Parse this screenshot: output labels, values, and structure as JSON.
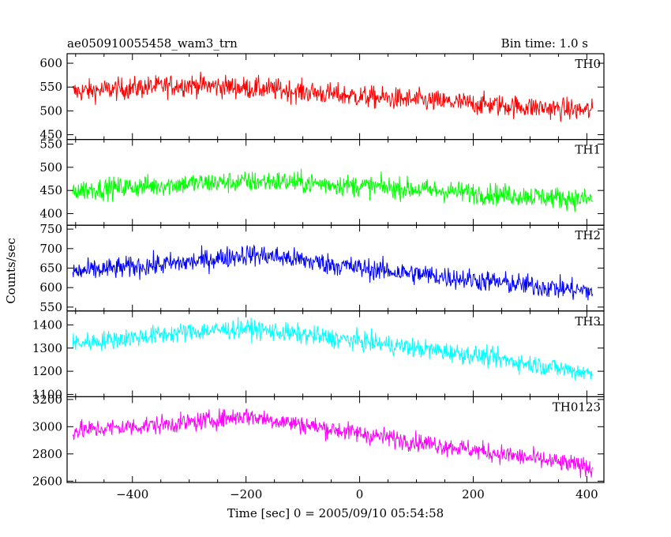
{
  "chart_data": {
    "type": "line",
    "title": "ae050910055458_wam3_trn",
    "bin_time_label": "Bin time: 1.0 s",
    "xlabel": "Time [sec] 0 = 2005/09/10 05:54:58",
    "ylabel": "Counts/sec",
    "x_range": [
      -505,
      410
    ],
    "xlim": [
      -515,
      430
    ],
    "x_ticks": [
      -400,
      -200,
      0,
      200,
      400
    ],
    "x_tick_labels": [
      "−400",
      "−200",
      "0",
      "200",
      "400"
    ],
    "grid": false,
    "legend": "none (panel labels at top-right)",
    "panels": [
      {
        "name": "TH0",
        "color": "#ff0000",
        "ylim": [
          440,
          620
        ],
        "y_ticks": [
          450,
          500,
          550,
          600
        ],
        "trend": [
          [
            -505,
            540
          ],
          [
            -300,
            555
          ],
          [
            -150,
            545
          ],
          [
            0,
            530
          ],
          [
            200,
            515
          ],
          [
            410,
            500
          ]
        ],
        "noise": 42
      },
      {
        "name": "TH1",
        "color": "#00ff00",
        "ylim": [
          375,
          560
        ],
        "y_ticks": [
          400,
          450,
          500,
          550
        ],
        "trend": [
          [
            -505,
            450
          ],
          [
            -300,
            465
          ],
          [
            -150,
            470
          ],
          [
            0,
            460
          ],
          [
            200,
            445
          ],
          [
            410,
            430
          ]
        ],
        "noise": 42
      },
      {
        "name": "TH2",
        "color": "#0000ff",
        "ylim": [
          540,
          760
        ],
        "y_ticks": [
          550,
          600,
          650,
          700,
          750
        ],
        "trend": [
          [
            -505,
            640
          ],
          [
            -300,
            665
          ],
          [
            -200,
            685
          ],
          [
            -150,
            680
          ],
          [
            0,
            650
          ],
          [
            200,
            620
          ],
          [
            410,
            590
          ]
        ],
        "noise": 50
      },
      {
        "name": "TH3",
        "color": "#00ffff",
        "ylim": [
          1090,
          1460
        ],
        "y_ticks": [
          1100,
          1200,
          1300,
          1400
        ],
        "trend": [
          [
            -505,
            1320
          ],
          [
            -300,
            1370
          ],
          [
            -200,
            1385
          ],
          [
            0,
            1330
          ],
          [
            200,
            1270
          ],
          [
            410,
            1190
          ]
        ],
        "noise": 75
      },
      {
        "name": "TH0123",
        "color": "#ff00ff",
        "ylim": [
          2590,
          3220
        ],
        "y_ticks": [
          2600,
          2800,
          3000,
          3200
        ],
        "trend": [
          [
            -505,
            2970
          ],
          [
            -300,
            3030
          ],
          [
            -200,
            3080
          ],
          [
            0,
            2950
          ],
          [
            200,
            2830
          ],
          [
            410,
            2700
          ]
        ],
        "noise": 125
      }
    ]
  }
}
